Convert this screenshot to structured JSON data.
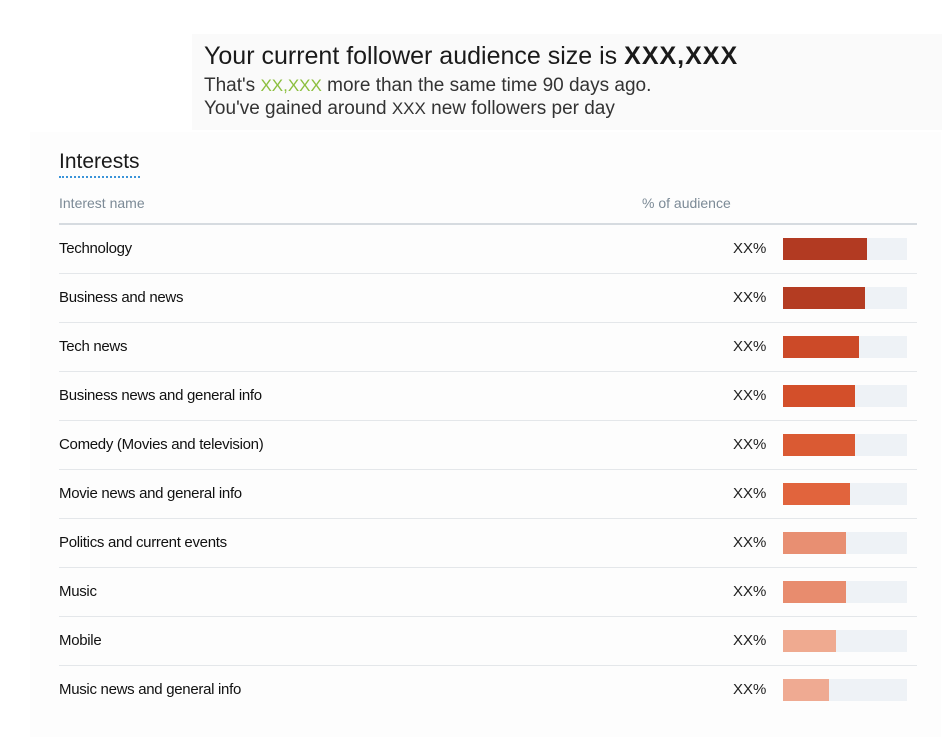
{
  "summary": {
    "title_prefix": "Your current follower audience size is ",
    "title_value": "XXX,XXX",
    "line1_prefix": "That's ",
    "line1_value": "XX,XXX",
    "line1_suffix": " more than the same time 90 days ago.",
    "line2_prefix": "You've gained around ",
    "line2_value": "XXX",
    "line2_suffix": " new followers per day"
  },
  "interests": {
    "title": "Interests",
    "col_name": "Interest name",
    "col_pct": "% of audience",
    "rows": [
      {
        "name": "Technology",
        "pct": "XX%",
        "fraction": 0.68,
        "color": "#b23a22"
      },
      {
        "name": "Business and news",
        "pct": "XX%",
        "fraction": 0.66,
        "color": "#b43c22"
      },
      {
        "name": "Tech news",
        "pct": "XX%",
        "fraction": 0.61,
        "color": "#cc4a28"
      },
      {
        "name": "Business news and general info",
        "pct": "XX%",
        "fraction": 0.58,
        "color": "#d34f2a"
      },
      {
        "name": "Comedy (Movies and television)",
        "pct": "XX%",
        "fraction": 0.58,
        "color": "#da5a33"
      },
      {
        "name": "Movie news and general info",
        "pct": "XX%",
        "fraction": 0.54,
        "color": "#e1643d"
      },
      {
        "name": "Politics and current events",
        "pct": "XX%",
        "fraction": 0.51,
        "color": "#e88f72"
      },
      {
        "name": "Music",
        "pct": "XX%",
        "fraction": 0.51,
        "color": "#e88c6e"
      },
      {
        "name": "Mobile",
        "pct": "XX%",
        "fraction": 0.43,
        "color": "#efaa90"
      },
      {
        "name": "Music news and general info",
        "pct": "XX%",
        "fraction": 0.37,
        "color": "#efaa92"
      }
    ]
  }
}
